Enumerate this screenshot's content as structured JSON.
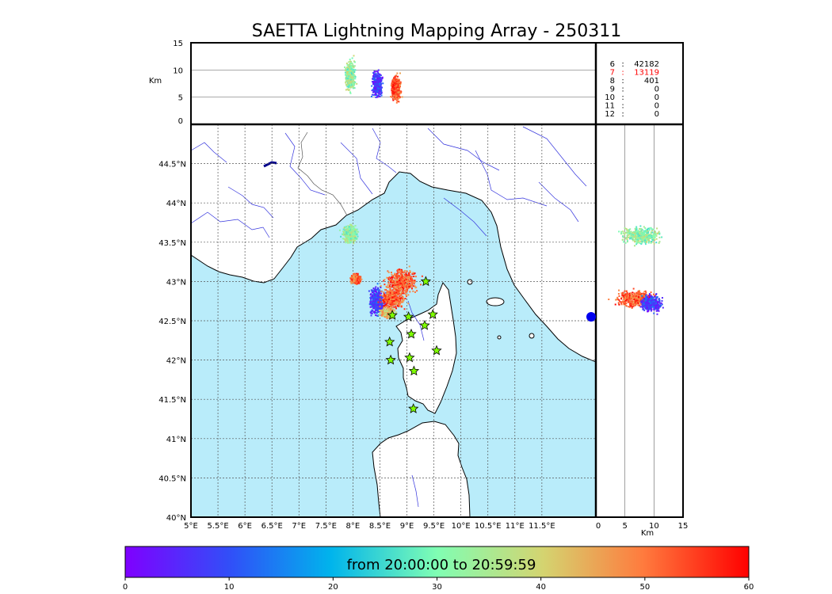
{
  "chart_data": [
    {
      "type": "scatter",
      "panel": "map",
      "title": "SAETTA Lightning Mapping Array - 250311",
      "xlim": [
        5,
        12.5
      ],
      "ylim": [
        40,
        45
      ],
      "x_ticks": [
        "5°E",
        "5.5°E",
        "6°E",
        "6.5°E",
        "7°E",
        "7.5°E",
        "8°E",
        "8.5°E",
        "9°E",
        "9.5°E",
        "10°E",
        "10.5°E",
        "11°E",
        "11.5°E"
      ],
      "y_ticks": [
        "40°N",
        "40.5°N",
        "41°N",
        "41.5°N",
        "42°N",
        "42.5°N",
        "43°N",
        "43.5°N",
        "44°N",
        "44.5°N"
      ],
      "grid": true,
      "colors": {
        "sea": "#b9ecfa",
        "land": "#ffffff",
        "coast": "#000000",
        "rivers": "#3333dd",
        "border": "#555555"
      },
      "stations": {
        "marker": "star",
        "color": "#7fff00",
        "points": [
          [
            9.35,
            43.0
          ],
          [
            8.73,
            42.57
          ],
          [
            9.03,
            42.55
          ],
          [
            9.48,
            42.58
          ],
          [
            9.33,
            42.44
          ],
          [
            9.08,
            42.33
          ],
          [
            8.68,
            42.23
          ],
          [
            9.55,
            42.12
          ],
          [
            9.05,
            42.03
          ],
          [
            8.7,
            42.0
          ],
          [
            9.13,
            41.86
          ],
          [
            9.12,
            41.38
          ]
        ]
      },
      "clusters": [
        {
          "lon": 7.95,
          "lat": 43.6,
          "spread_lon": 0.12,
          "spread_lat": 0.1,
          "time_min": [
            25,
            40
          ]
        },
        {
          "lon": 8.45,
          "lat": 42.75,
          "spread_lon": 0.12,
          "spread_lat": 0.15,
          "time_min": [
            0,
            15
          ]
        },
        {
          "lon": 8.75,
          "lat": 42.78,
          "spread_lon": 0.2,
          "spread_lat": 0.12,
          "time_min": [
            45,
            60
          ]
        },
        {
          "lon": 8.05,
          "lat": 43.03,
          "spread_lon": 0.08,
          "spread_lat": 0.05,
          "time_min": [
            45,
            60
          ]
        },
        {
          "lon": 8.9,
          "lat": 43.0,
          "spread_lon": 0.25,
          "spread_lat": 0.15,
          "time_min": [
            45,
            60
          ]
        },
        {
          "lon": 8.65,
          "lat": 42.6,
          "spread_lon": 0.12,
          "spread_lat": 0.06,
          "time_min": [
            35,
            50
          ]
        }
      ]
    },
    {
      "type": "scatter",
      "panel": "altitude-vs-longitude",
      "ylabel": "Km",
      "ylim": [
        0,
        15
      ],
      "y_ticks": [
        "0",
        "5",
        "10",
        "15"
      ],
      "clusters": [
        {
          "lon": 7.95,
          "alt": 9,
          "spread_alt": 2.5,
          "time_min": [
            25,
            40
          ]
        },
        {
          "lon": 8.45,
          "alt": 7.5,
          "spread_alt": 2.0,
          "time_min": [
            0,
            15
          ]
        },
        {
          "lon": 8.8,
          "alt": 6.5,
          "spread_alt": 2.0,
          "time_min": [
            45,
            60
          ]
        }
      ]
    },
    {
      "type": "scatter",
      "panel": "latitude-vs-altitude",
      "xlabel": "Km",
      "xlim": [
        0,
        15
      ],
      "x_ticks": [
        "0",
        "5",
        "10",
        "15"
      ],
      "clusters": [
        {
          "lat": 43.58,
          "alt": 8,
          "spread_alt": 3,
          "time_min": [
            25,
            40
          ]
        },
        {
          "lat": 42.78,
          "alt": 7,
          "spread_alt": 3,
          "time_min": [
            45,
            60
          ]
        },
        {
          "lat": 42.72,
          "alt": 9.5,
          "spread_alt": 1.5,
          "time_min": [
            0,
            15
          ]
        }
      ]
    },
    {
      "type": "table",
      "panel": "station-counts",
      "rows": [
        {
          "stations": "6",
          "sep": ":",
          "count": "42182",
          "highlight": false
        },
        {
          "stations": "7",
          "sep": ":",
          "count": "13119",
          "highlight": true
        },
        {
          "stations": "8",
          "sep": ":",
          "count": "401",
          "highlight": false
        },
        {
          "stations": "9",
          "sep": ":",
          "count": "0",
          "highlight": false
        },
        {
          "stations": "10",
          "sep": ":",
          "count": "0",
          "highlight": false
        },
        {
          "stations": "11",
          "sep": ":",
          "count": "0",
          "highlight": false
        },
        {
          "stations": "12",
          "sep": ":",
          "count": "0",
          "highlight": false
        }
      ],
      "highlight_color": "#ff0000"
    },
    {
      "type": "colorbar",
      "panel": "time-colorbar",
      "label": "from 20:00:00 to 20:59:59",
      "range": [
        0,
        60
      ],
      "ticks": [
        "0",
        "10",
        "20",
        "30",
        "40",
        "50",
        "60"
      ],
      "colormap": "rainbow"
    }
  ]
}
